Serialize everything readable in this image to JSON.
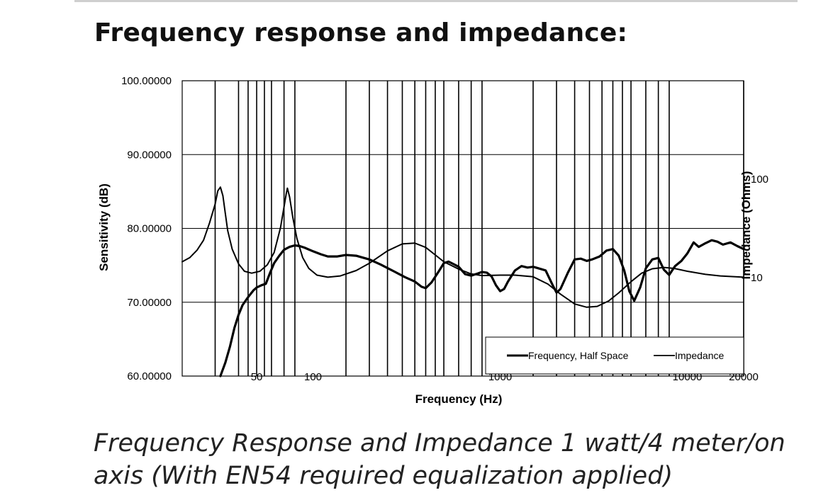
{
  "page": {
    "heading": "Frequency response and impedance:",
    "caption": "Frequency Response and Impedance 1 watt/4 meter/on axis (With EN54 required equalization applied)"
  },
  "chart_data": {
    "type": "line",
    "xlabel": "Frequency (Hz)",
    "ylabel": "Sensitivity (dB)",
    "y2label": "Impedance (Ohms)",
    "xscale": "log",
    "xlim": [
      20,
      20000
    ],
    "ylim": [
      60,
      100
    ],
    "y2scale": "log",
    "y2lim": [
      1,
      1000
    ],
    "grid": true,
    "legend_position": "bottom-right",
    "x_tick_labels": [
      {
        "value": 50,
        "label": "50"
      },
      {
        "value": 100,
        "label": "100"
      },
      {
        "value": 1000,
        "label": "1000"
      },
      {
        "value": 10000,
        "label": "10000"
      },
      {
        "value": 20000,
        "label": "20000"
      }
    ],
    "y_tick_labels": [
      "60.00000",
      "70.00000",
      "80.00000",
      "90.00000",
      "100.00000"
    ],
    "y2_tick_labels": [
      {
        "value": 10,
        "label": "10"
      },
      {
        "value": 100,
        "label": "100"
      }
    ],
    "gridlines_x": [
      30,
      40,
      45,
      50,
      55,
      60,
      70,
      80,
      150,
      200,
      250,
      300,
      350,
      400,
      450,
      500,
      600,
      700,
      800,
      1500,
      2000,
      2500,
      3000,
      3500,
      4000,
      4500,
      5000,
      6000,
      7000,
      8000,
      20000
    ],
    "series": [
      {
        "name": "Frequency, Half Space",
        "axis": "left",
        "points": [
          [
            32,
            60
          ],
          [
            34,
            61.8
          ],
          [
            36,
            64
          ],
          [
            38,
            66.5
          ],
          [
            40,
            68.3
          ],
          [
            42,
            69.6
          ],
          [
            45,
            70.7
          ],
          [
            48,
            71.6
          ],
          [
            50,
            72
          ],
          [
            53,
            72.3
          ],
          [
            56,
            72.5
          ],
          [
            59,
            74
          ],
          [
            62,
            75.3
          ],
          [
            66,
            76.3
          ],
          [
            70,
            77.1
          ],
          [
            75,
            77.5
          ],
          [
            80,
            77.7
          ],
          [
            85,
            77.6
          ],
          [
            90,
            77.4
          ],
          [
            100,
            76.9
          ],
          [
            110,
            76.5
          ],
          [
            120,
            76.2
          ],
          [
            135,
            76.2
          ],
          [
            150,
            76.4
          ],
          [
            170,
            76.3
          ],
          [
            200,
            75.8
          ],
          [
            230,
            75.1
          ],
          [
            270,
            74.2
          ],
          [
            310,
            73.4
          ],
          [
            350,
            72.8
          ],
          [
            380,
            72.1
          ],
          [
            400,
            71.9
          ],
          [
            430,
            72.7
          ],
          [
            470,
            74.2
          ],
          [
            500,
            75.3
          ],
          [
            530,
            75.5
          ],
          [
            560,
            75.2
          ],
          [
            600,
            74.8
          ],
          [
            650,
            73.8
          ],
          [
            700,
            73.6
          ],
          [
            760,
            73.9
          ],
          [
            800,
            74.1
          ],
          [
            850,
            74
          ],
          [
            900,
            73.5
          ],
          [
            950,
            72.3
          ],
          [
            1000,
            71.5
          ],
          [
            1050,
            71.8
          ],
          [
            1100,
            72.8
          ],
          [
            1200,
            74.3
          ],
          [
            1300,
            74.9
          ],
          [
            1400,
            74.7
          ],
          [
            1500,
            74.8
          ],
          [
            1600,
            74.6
          ],
          [
            1750,
            74.3
          ],
          [
            1900,
            72.4
          ],
          [
            2000,
            71.3
          ],
          [
            2100,
            71.8
          ],
          [
            2300,
            74
          ],
          [
            2500,
            75.8
          ],
          [
            2700,
            75.9
          ],
          [
            2900,
            75.6
          ],
          [
            3100,
            75.8
          ],
          [
            3400,
            76.2
          ],
          [
            3700,
            77
          ],
          [
            4000,
            77.2
          ],
          [
            4300,
            76.3
          ],
          [
            4600,
            74.3
          ],
          [
            4900,
            71.5
          ],
          [
            5200,
            70.2
          ],
          [
            5600,
            72
          ],
          [
            6000,
            74.6
          ],
          [
            6500,
            75.8
          ],
          [
            7000,
            76
          ],
          [
            7500,
            74.4
          ],
          [
            8000,
            73.7
          ],
          [
            8600,
            74.9
          ],
          [
            9300,
            75.6
          ],
          [
            10000,
            76.6
          ],
          [
            10800,
            78.1
          ],
          [
            11500,
            77.5
          ],
          [
            12500,
            78
          ],
          [
            13500,
            78.4
          ],
          [
            14500,
            78.2
          ],
          [
            15500,
            77.8
          ],
          [
            17000,
            78.1
          ],
          [
            18500,
            77.6
          ],
          [
            20000,
            77.2
          ]
        ]
      },
      {
        "name": "Impedance",
        "axis": "right",
        "points": [
          [
            20,
            14.5
          ],
          [
            22,
            16
          ],
          [
            24,
            19
          ],
          [
            26,
            24
          ],
          [
            28,
            36
          ],
          [
            30,
            56
          ],
          [
            31,
            76
          ],
          [
            32,
            83
          ],
          [
            33,
            68
          ],
          [
            34,
            45
          ],
          [
            35,
            30
          ],
          [
            37,
            19.5
          ],
          [
            40,
            13.8
          ],
          [
            43,
            11.6
          ],
          [
            47,
            11.1
          ],
          [
            52,
            11.6
          ],
          [
            57,
            13.5
          ],
          [
            62,
            18
          ],
          [
            67,
            32
          ],
          [
            70,
            52
          ],
          [
            72,
            72
          ],
          [
            73,
            81
          ],
          [
            75,
            66
          ],
          [
            78,
            41
          ],
          [
            82,
            25
          ],
          [
            88,
            16
          ],
          [
            95,
            12.4
          ],
          [
            105,
            10.6
          ],
          [
            120,
            10.1
          ],
          [
            140,
            10.4
          ],
          [
            170,
            11.8
          ],
          [
            200,
            14
          ],
          [
            250,
            18.7
          ],
          [
            300,
            22
          ],
          [
            350,
            22.4
          ],
          [
            400,
            20.3
          ],
          [
            450,
            17
          ],
          [
            500,
            14.5
          ],
          [
            600,
            12.2
          ],
          [
            700,
            10.9
          ],
          [
            800,
            10.5
          ],
          [
            1000,
            10.6
          ],
          [
            1200,
            10.6
          ],
          [
            1500,
            10.2
          ],
          [
            1800,
            8.6
          ],
          [
            2100,
            6.8
          ],
          [
            2500,
            5.4
          ],
          [
            2900,
            5
          ],
          [
            3300,
            5.1
          ],
          [
            3800,
            5.8
          ],
          [
            4300,
            7
          ],
          [
            5000,
            9.1
          ],
          [
            5700,
            11.1
          ],
          [
            6500,
            12.3
          ],
          [
            7500,
            12.7
          ],
          [
            8500,
            12.4
          ],
          [
            10000,
            11.6
          ],
          [
            12500,
            10.8
          ],
          [
            15000,
            10.4
          ],
          [
            20000,
            10.1
          ]
        ]
      }
    ]
  }
}
